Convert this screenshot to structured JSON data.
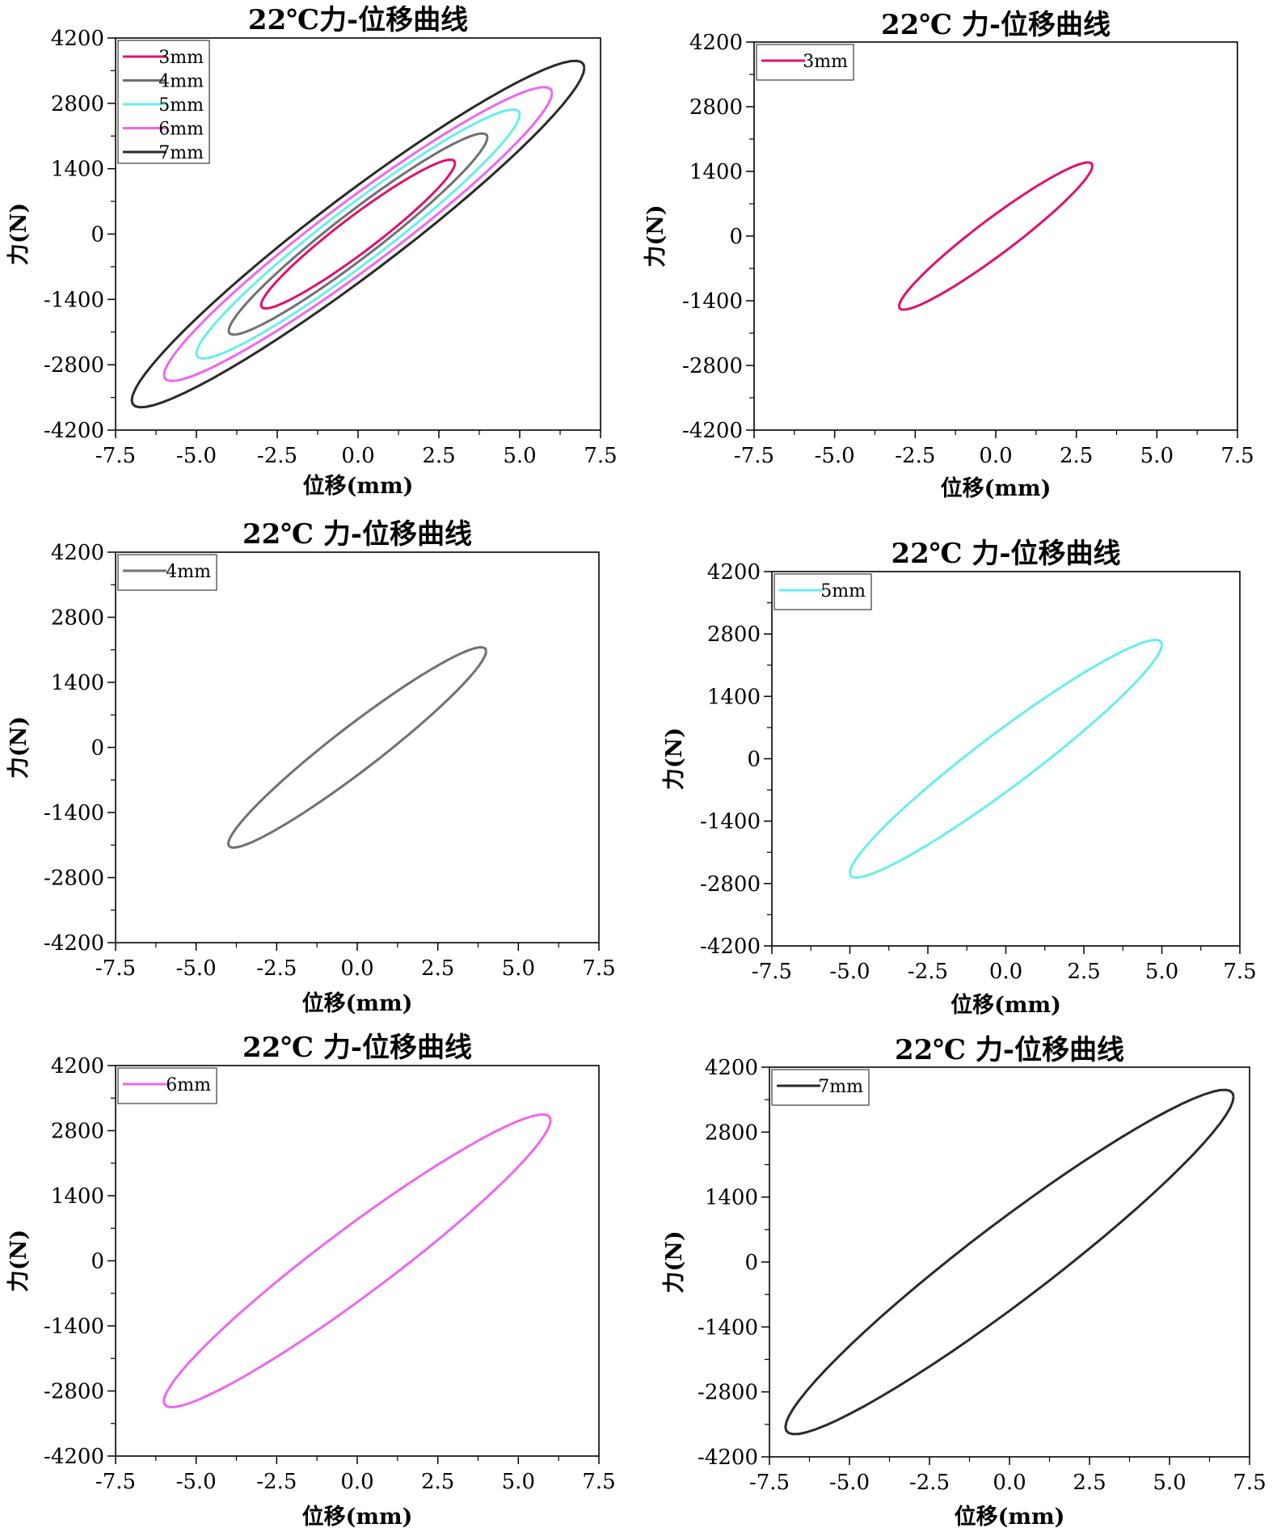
{
  "chart_data": [
    {
      "type": "line",
      "title": "22℃力-位移曲线",
      "xlabel": "位移(mm)",
      "ylabel": "力(N)",
      "xlim": [
        -7.5,
        7.5
      ],
      "ylim": [
        -4200,
        4200
      ],
      "xticks": [
        "-7.5",
        "-5.0",
        "-2.5",
        "0.0",
        "2.5",
        "5.0",
        "7.5"
      ],
      "yticks": [
        "4200",
        "2800",
        "1400",
        "0",
        "-1400",
        "-2800",
        "-4200"
      ],
      "legend_position": "top-left",
      "series": [
        {
          "name": "3mm",
          "color": "#e0106e",
          "amplitude_mm": 3,
          "peak_force_N": 1520,
          "intercept_N": 480
        },
        {
          "name": "4mm",
          "color": "#707070",
          "amplitude_mm": 4,
          "peak_force_N": 2070,
          "intercept_N": 600
        },
        {
          "name": "5mm",
          "color": "#66eeee",
          "amplitude_mm": 5,
          "peak_force_N": 2560,
          "intercept_N": 750
        },
        {
          "name": "6mm",
          "color": "#ee66ee",
          "amplitude_mm": 6,
          "peak_force_N": 3020,
          "intercept_N": 890
        },
        {
          "name": "7mm",
          "color": "#2a2a2a",
          "amplitude_mm": 7,
          "peak_force_N": 3560,
          "intercept_N": 1050
        }
      ]
    },
    {
      "type": "line",
      "title": "22℃ 力-位移曲线",
      "xlabel": "位移(mm)",
      "ylabel": "力(N)",
      "xlim": [
        -7.5,
        7.5
      ],
      "ylim": [
        -4200,
        4200
      ],
      "xticks": [
        "-7.5",
        "-5.0",
        "-2.5",
        "0.0",
        "2.5",
        "5.0",
        "7.5"
      ],
      "yticks": [
        "4200",
        "2800",
        "1400",
        "0",
        "-1400",
        "-2800",
        "-4200"
      ],
      "legend_position": "top-left",
      "series": [
        {
          "name": "3mm",
          "color": "#e0106e",
          "amplitude_mm": 3,
          "peak_force_N": 1520,
          "intercept_N": 480
        }
      ]
    },
    {
      "type": "line",
      "title": "22℃ 力-位移曲线",
      "xlabel": "位移(mm)",
      "ylabel": "力(N)",
      "xlim": [
        -7.5,
        7.5
      ],
      "ylim": [
        -4200,
        4200
      ],
      "xticks": [
        "-7.5",
        "-5.0",
        "-2.5",
        "0.0",
        "2.5",
        "5.0",
        "7.5"
      ],
      "yticks": [
        "4200",
        "2800",
        "1400",
        "0",
        "-1400",
        "-2800",
        "-4200"
      ],
      "legend_position": "top-left",
      "series": [
        {
          "name": "4mm",
          "color": "#707070",
          "amplitude_mm": 4,
          "peak_force_N": 2070,
          "intercept_N": 600
        }
      ]
    },
    {
      "type": "line",
      "title": "22℃ 力-位移曲线",
      "xlabel": "位移(mm)",
      "ylabel": "力(N)",
      "xlim": [
        -7.5,
        7.5
      ],
      "ylim": [
        -4200,
        4200
      ],
      "xticks": [
        "-7.5",
        "-5.0",
        "-2.5",
        "0.0",
        "2.5",
        "5.0",
        "7.5"
      ],
      "yticks": [
        "4200",
        "2800",
        "1400",
        "0",
        "-1400",
        "-2800",
        "-4200"
      ],
      "legend_position": "top-left",
      "series": [
        {
          "name": "5mm",
          "color": "#66eeee",
          "amplitude_mm": 5,
          "peak_force_N": 2560,
          "intercept_N": 750
        }
      ]
    },
    {
      "type": "line",
      "title": "22℃ 力-位移曲线",
      "xlabel": "位移(mm)",
      "ylabel": "力(N)",
      "xlim": [
        -7.5,
        7.5
      ],
      "ylim": [
        -4200,
        4200
      ],
      "xticks": [
        "-7.5",
        "-5.0",
        "-2.5",
        "0.0",
        "2.5",
        "5.0",
        "7.5"
      ],
      "yticks": [
        "4200",
        "2800",
        "1400",
        "0",
        "-1400",
        "-2800",
        "-4200"
      ],
      "legend_position": "top-left",
      "series": [
        {
          "name": "6mm",
          "color": "#ee66ee",
          "amplitude_mm": 6,
          "peak_force_N": 3020,
          "intercept_N": 890
        }
      ]
    },
    {
      "type": "line",
      "title": "22℃ 力-位移曲线",
      "xlabel": "位移(mm)",
      "ylabel": "力(N)",
      "xlim": [
        -7.5,
        7.5
      ],
      "ylim": [
        -4200,
        4200
      ],
      "xticks": [
        "-7.5",
        "-5.0",
        "-2.5",
        "0.0",
        "2.5",
        "5.0",
        "7.5"
      ],
      "yticks": [
        "4200",
        "2800",
        "1400",
        "0",
        "-1400",
        "-2800",
        "-4200"
      ],
      "legend_position": "top-left",
      "series": [
        {
          "name": "7mm",
          "color": "#2a2a2a",
          "amplitude_mm": 7,
          "peak_force_N": 3560,
          "intercept_N": 1050
        }
      ]
    }
  ]
}
